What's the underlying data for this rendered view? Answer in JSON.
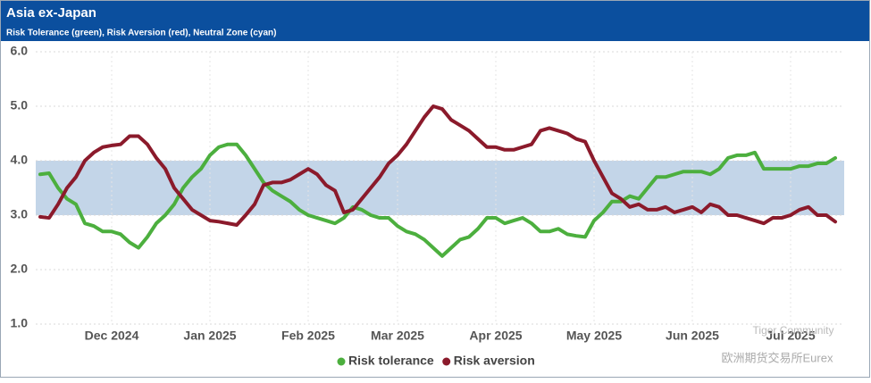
{
  "chart_data": {
    "type": "line",
    "title": "Asia ex-Japan",
    "subtitle": "Risk Tolerance (green), Risk Aversion (red), Neutral Zone (cyan)",
    "categories": [
      null,
      null,
      null,
      null,
      null,
      null,
      null,
      null,
      "Dec 2024",
      null,
      null,
      null,
      null,
      null,
      null,
      null,
      null,
      null,
      null,
      "Jan 2025",
      null,
      null,
      null,
      null,
      null,
      null,
      null,
      null,
      null,
      null,
      "Feb 2025",
      null,
      null,
      null,
      null,
      null,
      null,
      null,
      null,
      null,
      "Mar 2025",
      null,
      null,
      null,
      null,
      null,
      null,
      null,
      null,
      null,
      null,
      "Apr 2025",
      null,
      null,
      null,
      null,
      null,
      null,
      null,
      null,
      null,
      null,
      "May 2025",
      null,
      null,
      null,
      null,
      null,
      null,
      null,
      null,
      null,
      null,
      "Jun 2025",
      null,
      null,
      null,
      null,
      null,
      null,
      null,
      null,
      null,
      null,
      "Jul 2025",
      null,
      null,
      null,
      null,
      null
    ],
    "series": [
      {
        "name": "Risk tolerance",
        "color": "#4caf3e",
        "values": [
          3.75,
          3.77,
          3.5,
          3.3,
          3.2,
          2.85,
          2.8,
          2.7,
          2.7,
          2.65,
          2.5,
          2.4,
          2.6,
          2.85,
          3.0,
          3.2,
          3.5,
          3.7,
          3.85,
          4.1,
          4.25,
          4.3,
          4.3,
          4.1,
          3.85,
          3.6,
          3.45,
          3.35,
          3.25,
          3.1,
          3.0,
          2.95,
          2.9,
          2.85,
          2.95,
          3.15,
          3.1,
          3.0,
          2.95,
          2.95,
          2.8,
          2.7,
          2.65,
          2.55,
          2.4,
          2.25,
          2.4,
          2.55,
          2.6,
          2.75,
          2.95,
          2.95,
          2.85,
          2.9,
          2.95,
          2.85,
          2.7,
          2.7,
          2.75,
          2.65,
          2.62,
          2.6,
          2.9,
          3.05,
          3.25,
          3.25,
          3.35,
          3.3,
          3.5,
          3.7,
          3.7,
          3.75,
          3.8,
          3.8,
          3.8,
          3.75,
          3.85,
          4.05,
          4.1,
          4.1,
          4.15,
          3.85,
          3.85,
          3.85,
          3.85,
          3.9,
          3.9,
          3.95,
          3.95,
          4.05
        ]
      },
      {
        "name": "Risk aversion",
        "color": "#8b1a2b",
        "values": [
          2.97,
          2.95,
          3.2,
          3.5,
          3.7,
          4.0,
          4.15,
          4.25,
          4.28,
          4.3,
          4.45,
          4.45,
          4.3,
          4.05,
          3.85,
          3.5,
          3.3,
          3.1,
          3.0,
          2.9,
          2.88,
          2.85,
          2.82,
          3.0,
          3.2,
          3.55,
          3.6,
          3.6,
          3.65,
          3.75,
          3.85,
          3.75,
          3.55,
          3.45,
          3.05,
          3.1,
          3.3,
          3.5,
          3.7,
          3.95,
          4.1,
          4.3,
          4.55,
          4.8,
          5.0,
          4.95,
          4.75,
          4.65,
          4.55,
          4.4,
          4.25,
          4.25,
          4.2,
          4.2,
          4.25,
          4.3,
          4.55,
          4.6,
          4.55,
          4.5,
          4.4,
          4.35,
          4.0,
          3.7,
          3.4,
          3.3,
          3.15,
          3.2,
          3.1,
          3.1,
          3.15,
          3.05,
          3.1,
          3.15,
          3.05,
          3.2,
          3.15,
          3.0,
          3.0,
          2.95,
          2.9,
          2.85,
          2.95,
          2.95,
          3.0,
          3.1,
          3.15,
          3.0,
          3.0,
          2.88
        ]
      }
    ],
    "band": {
      "range": [
        3,
        4
      ],
      "color": "#c3d5e8"
    },
    "ylim": [
      1,
      6
    ],
    "yticks": [
      {
        "value": 1,
        "label": "1.0"
      },
      {
        "value": 2,
        "label": "2.0"
      },
      {
        "value": 3,
        "label": "3.0"
      },
      {
        "value": 4,
        "label": "4.0"
      },
      {
        "value": 5,
        "label": "5.0"
      },
      {
        "value": 6,
        "label": "6.0"
      }
    ],
    "grid": true,
    "legend": "bottom",
    "watermarks": [
      "Tiger Community",
      "欧洲期货交易所Eurex"
    ]
  }
}
